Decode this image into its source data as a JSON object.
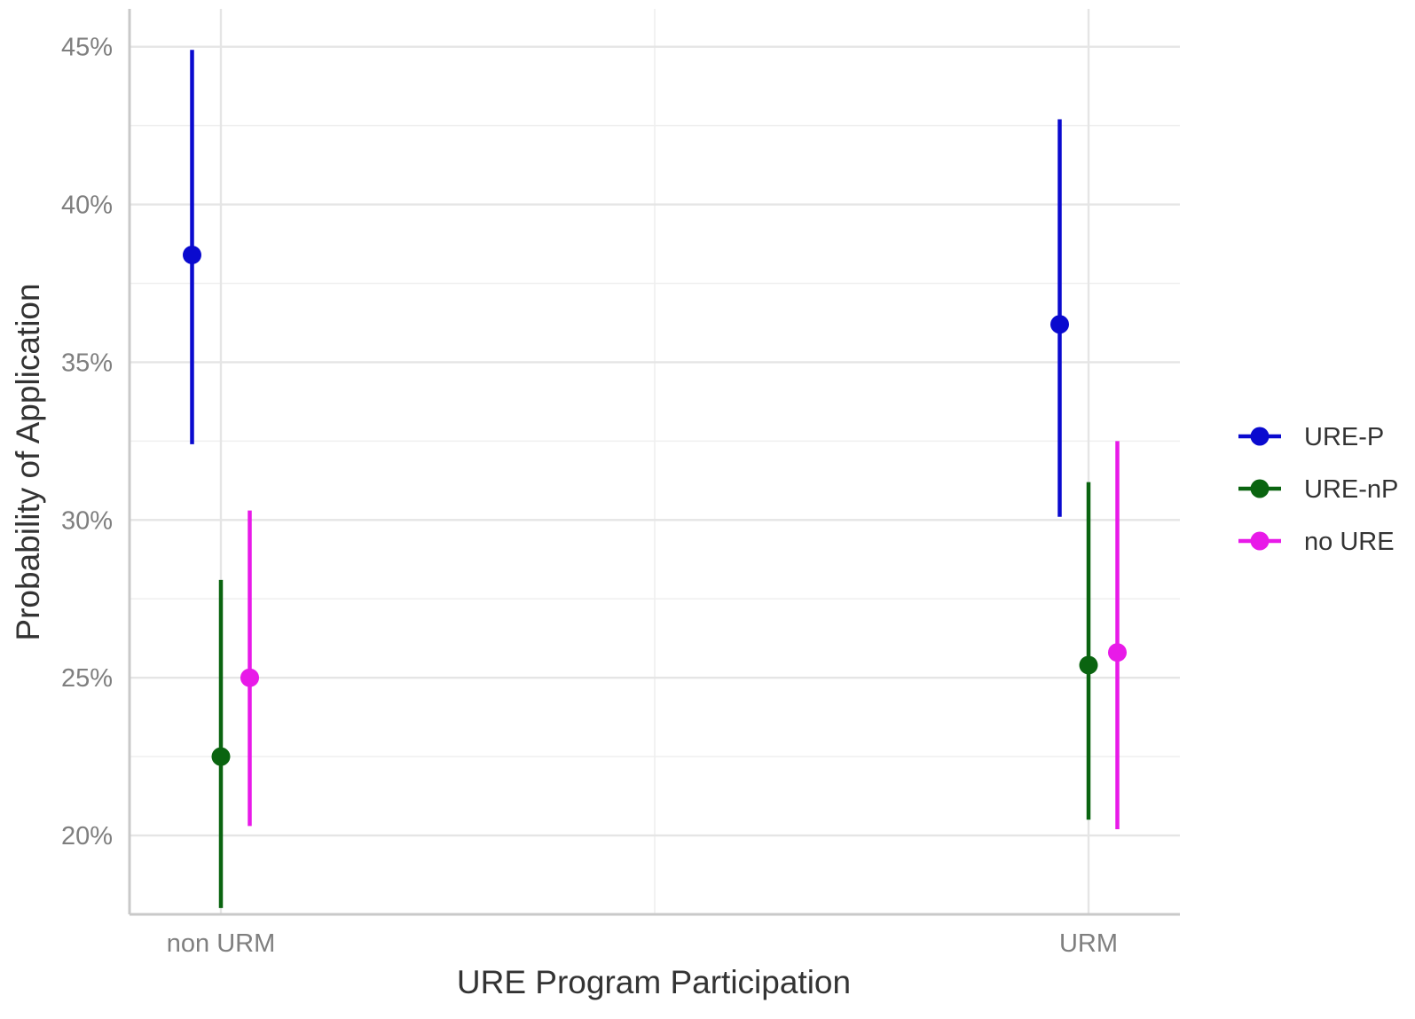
{
  "chart_data": {
    "type": "pointrange",
    "categories": [
      "non URM",
      "URM"
    ],
    "xlabel": "URE Program Participation",
    "ylabel": "Probability of Application",
    "ylim": [
      17.5,
      46.2
    ],
    "yticks": [
      20,
      25,
      30,
      35,
      40,
      45
    ],
    "ytick_labels": [
      "20%",
      "25%",
      "30%",
      "35%",
      "40%",
      "45%"
    ],
    "grid": true,
    "legend_position": "right",
    "series": [
      {
        "name": "URE-P",
        "color": "#0A0ACF",
        "values": [
          38.4,
          36.2
        ],
        "lower": [
          32.4,
          30.1
        ],
        "upper": [
          44.9,
          42.7
        ]
      },
      {
        "name": "URE-nP",
        "color": "#0A6410",
        "values": [
          22.5,
          25.4
        ],
        "lower": [
          17.7,
          20.5
        ],
        "upper": [
          28.1,
          31.2
        ]
      },
      {
        "name": "no URE",
        "color": "#E81AE8",
        "values": [
          25.0,
          25.8
        ],
        "lower": [
          20.3,
          20.2
        ],
        "upper": [
          30.3,
          32.5
        ]
      }
    ]
  }
}
